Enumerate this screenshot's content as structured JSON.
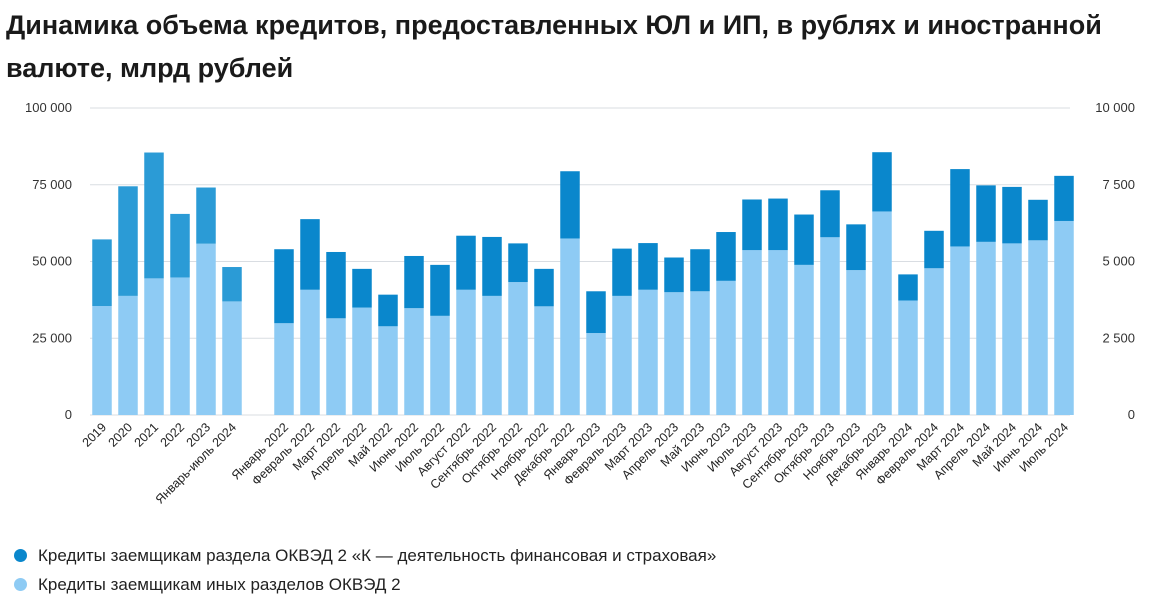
{
  "chart_data": {
    "type": "bar",
    "stacked": true,
    "title": "Динамика объема кредитов, предоставленных ЮЛ и ИП, в рублях и иностранной валюте, млрд рублей",
    "ylim": [
      0,
      100000
    ],
    "yticks": [
      "0",
      "25 000",
      "50 000",
      "75 000",
      "100 000"
    ],
    "ylim_right": [
      0,
      10000
    ],
    "yticks_right": [
      "0",
      "2 500",
      "5 000",
      "7 500",
      "10 000"
    ],
    "grid": true,
    "legend_position": "bottom-left",
    "groups": [
      {
        "axis": "right",
        "categories": [
          "2019",
          "2020",
          "2021",
          "2022",
          "2023",
          "Январь-июль 2024"
        ],
        "series": [
          {
            "name": "Кредиты заемщикам иных разделов ОКВЭД 2",
            "values": [
              3550,
              3880,
              4450,
              4480,
              5580,
              3700
            ]
          },
          {
            "name": "Кредиты заемщикам раздела ОКВЭД 2 «К — деятельность финансовая и страховая»",
            "values": [
              2170,
              3570,
              4100,
              2070,
              1830,
              1120
            ]
          }
        ]
      },
      {
        "axis": "left",
        "categories": [
          "Январь 2022",
          "Февраль 2022",
          "Март 2022",
          "Апрель 2022",
          "Май 2022",
          "Июнь 2022",
          "Июль 2022",
          "Август 2022",
          "Сентябрь 2022",
          "Октябрь 2022",
          "Ноябрь 2022",
          "Декабрь 2022",
          "Январь 2023",
          "Февраль 2023",
          "Март 2023",
          "Апрель 2023",
          "Май 2023",
          "Июнь 2023",
          "Июль 2023",
          "Август 2023",
          "Сентябрь 2023",
          "Октябрь 2023",
          "Ноябрь 2023",
          "Декабрь 2023",
          "Январь 2024",
          "Февраль 2024",
          "Март 2024",
          "Апрель 2024",
          "Май 2024",
          "Июнь 2024",
          "Июль 2024"
        ],
        "series": [
          {
            "name": "Кредиты заемщикам иных разделов ОКВЭД 2",
            "values": [
              29900,
              40800,
              31500,
              35000,
              28900,
              34800,
              32300,
              40800,
              38800,
              43300,
              35400,
              57500,
              26700,
              38800,
              40800,
              40000,
              40300,
              43700,
              53700,
              53700,
              48900,
              57900,
              47200,
              66300,
              37300,
              47800,
              54900,
              56400,
              55900,
              56900,
              63200
            ]
          },
          {
            "name": "Кредиты заемщикам раздела ОКВЭД 2 «К — деятельность финансовая и страховая»",
            "values": [
              24100,
              23000,
              21600,
              12600,
              10300,
              17000,
              16600,
              17600,
              19200,
              12600,
              12200,
              21900,
              13600,
              15400,
              15200,
              11300,
              13700,
              15900,
              16500,
              16800,
              16400,
              15300,
              14900,
              19300,
              8500,
              12200,
              25200,
              18400,
              18400,
              13200,
              14700
            ]
          }
        ]
      }
    ],
    "colors": {
      "dark_main": "#0a87cc",
      "dark_annual": "#2b9bd6",
      "light": "#8ecbf4"
    }
  },
  "legend": [
    {
      "label": "Кредиты заемщикам раздела ОКВЭД 2 «К — деятельность финансовая и страховая»",
      "color": "#0a87cc"
    },
    {
      "label": "Кредиты заемщикам иных разделов ОКВЭД 2",
      "color": "#8ecbf4"
    }
  ]
}
